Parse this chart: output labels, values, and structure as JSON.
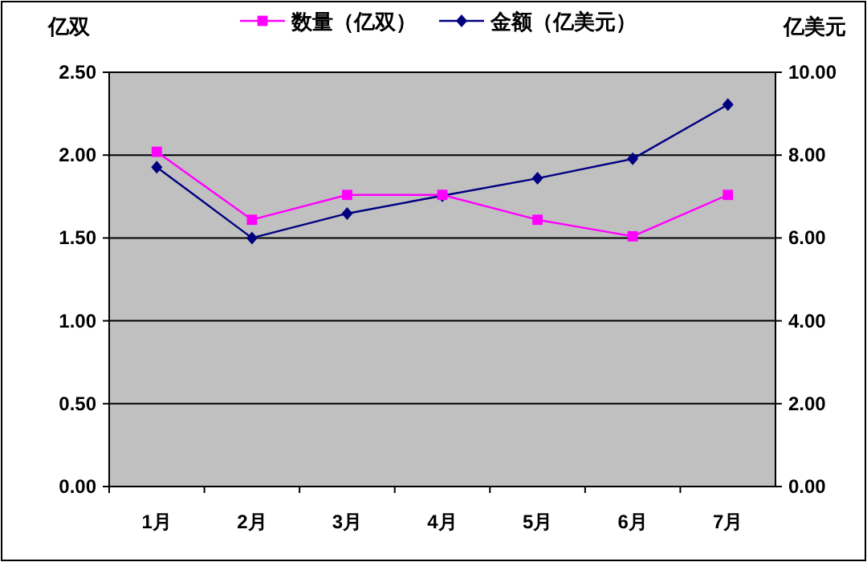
{
  "chart_data": {
    "type": "line",
    "categories": [
      "1月",
      "2月",
      "3月",
      "4月",
      "5月",
      "6月",
      "7月"
    ],
    "ylabel": "亿双",
    "y2label": "亿美元",
    "ylim": [
      0,
      2.5
    ],
    "yticks": [
      {
        "value": 0,
        "label": "0.00"
      },
      {
        "value": 0.5,
        "label": "0.50"
      },
      {
        "value": 1,
        "label": "1.00"
      },
      {
        "value": 1.5,
        "label": "1.50"
      },
      {
        "value": 2,
        "label": "2.00"
      },
      {
        "value": 2.5,
        "label": "2.50"
      }
    ],
    "y2lim": [
      0,
      10
    ],
    "y2ticks": [
      {
        "value": 0,
        "label": "0.00"
      },
      {
        "value": 2,
        "label": "2.00"
      },
      {
        "value": 4,
        "label": "4.00"
      },
      {
        "value": 6,
        "label": "6.00"
      },
      {
        "value": 8,
        "label": "8.00"
      },
      {
        "value": 10,
        "label": "10.00"
      }
    ],
    "grid": "y",
    "legend": "top",
    "series": [
      {
        "name": "数量（亿双）",
        "color": "#ff00ff",
        "marker": "square",
        "values": [
          2.02,
          1.61,
          1.76,
          1.76,
          1.61,
          1.51,
          1.76
        ]
      },
      {
        "name": "金额（亿美元）",
        "color": "#000080",
        "marker": "diamond",
        "axis": "y2",
        "values": [
          7.71,
          6.0,
          6.59,
          7.02,
          7.44,
          7.91,
          9.22
        ]
      }
    ]
  }
}
